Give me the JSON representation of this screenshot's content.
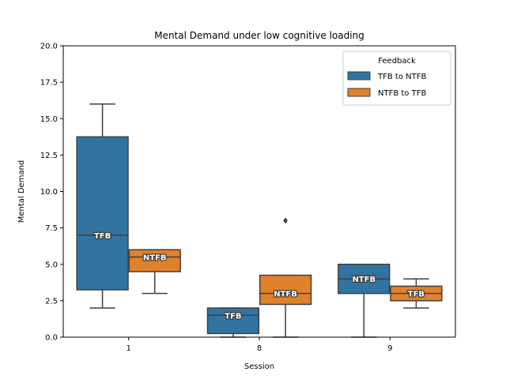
{
  "chart_data": {
    "type": "box",
    "title": "Mental Demand under low cognitive loading",
    "xlabel": "Session",
    "ylabel": "Mental Demand",
    "ylim": [
      0,
      20
    ],
    "yticks": [
      "0.0",
      "2.5",
      "5.0",
      "7.5",
      "10.0",
      "12.5",
      "15.0",
      "17.5",
      "20.0"
    ],
    "ytick_values": [
      0,
      2.5,
      5,
      7.5,
      10,
      12.5,
      15,
      17.5,
      20
    ],
    "categories": [
      "1",
      "8",
      "9"
    ],
    "legend": {
      "title": "Feedback",
      "position": "top-right",
      "entries": [
        "TFB to NTFB",
        "NTFB to TFB"
      ]
    },
    "series": [
      {
        "name": "TFB to NTFB",
        "color": "#3274a1",
        "boxes": [
          {
            "whisker_low": 2,
            "q1": 3.25,
            "median": 7,
            "q3": 13.75,
            "whisker_high": 16,
            "outliers": [],
            "label": "TFB"
          },
          {
            "whisker_low": 0,
            "q1": 0.25,
            "median": 1.5,
            "q3": 2,
            "whisker_high": 2,
            "outliers": [],
            "label": "TFB"
          },
          {
            "whisker_low": 0,
            "q1": 3,
            "median": 4,
            "q3": 5,
            "whisker_high": 5,
            "outliers": [],
            "label": "NTFB"
          }
        ]
      },
      {
        "name": "NTFB to TFB",
        "color": "#e1812c",
        "boxes": [
          {
            "whisker_low": 3,
            "q1": 4.5,
            "median": 5.5,
            "q3": 6,
            "whisker_high": 6,
            "outliers": [],
            "label": "NTFB"
          },
          {
            "whisker_low": 0,
            "q1": 2.25,
            "median": 3,
            "q3": 4.25,
            "whisker_high": 4.25,
            "outliers": [
              8
            ],
            "label": "NTFB"
          },
          {
            "whisker_low": 2,
            "q1": 2.5,
            "median": 3,
            "q3": 3.5,
            "whisker_high": 4,
            "outliers": [],
            "label": "TFB"
          }
        ]
      }
    ]
  }
}
